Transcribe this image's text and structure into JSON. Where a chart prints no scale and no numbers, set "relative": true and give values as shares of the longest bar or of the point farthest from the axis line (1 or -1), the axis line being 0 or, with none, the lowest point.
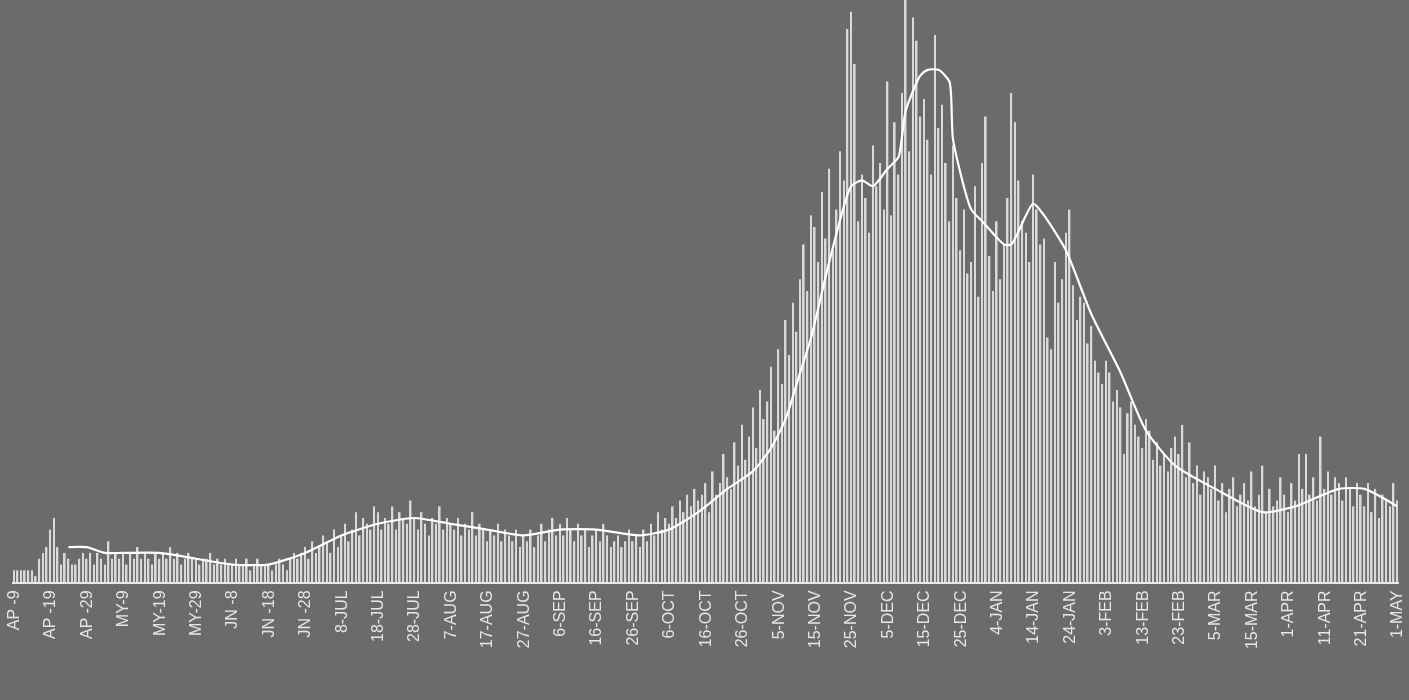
{
  "chart_data": {
    "type": "bar",
    "relative": true,
    "tick_labels": "x",
    "categories": [
      "AP -9",
      null,
      null,
      null,
      null,
      null,
      null,
      null,
      null,
      null,
      "AP -19",
      null,
      null,
      null,
      null,
      null,
      null,
      null,
      null,
      null,
      "AP -29",
      null,
      null,
      null,
      null,
      null,
      null,
      null,
      null,
      null,
      "MY-9",
      null,
      null,
      null,
      null,
      null,
      null,
      null,
      null,
      null,
      "MY-19",
      null,
      null,
      null,
      null,
      null,
      null,
      null,
      null,
      null,
      "MY-29",
      null,
      null,
      null,
      null,
      null,
      null,
      null,
      null,
      null,
      "JN -8",
      null,
      null,
      null,
      null,
      null,
      null,
      null,
      null,
      null,
      "JN -18",
      null,
      null,
      null,
      null,
      null,
      null,
      null,
      null,
      null,
      "JN -28",
      null,
      null,
      null,
      null,
      null,
      null,
      null,
      null,
      null,
      "8-JUL",
      null,
      null,
      null,
      null,
      null,
      null,
      null,
      null,
      null,
      "18-JUL",
      null,
      null,
      null,
      null,
      null,
      null,
      null,
      null,
      null,
      "28-JUL",
      null,
      null,
      null,
      null,
      null,
      null,
      null,
      null,
      null,
      "7-AUG",
      null,
      null,
      null,
      null,
      null,
      null,
      null,
      null,
      null,
      "17-AUG",
      null,
      null,
      null,
      null,
      null,
      null,
      null,
      null,
      null,
      "27-AUG",
      null,
      null,
      null,
      null,
      null,
      null,
      null,
      null,
      null,
      "6-SEP",
      null,
      null,
      null,
      null,
      null,
      null,
      null,
      null,
      null,
      "16-SEP",
      null,
      null,
      null,
      null,
      null,
      null,
      null,
      null,
      null,
      "26-SEP",
      null,
      null,
      null,
      null,
      null,
      null,
      null,
      null,
      null,
      "6-OCT",
      null,
      null,
      null,
      null,
      null,
      null,
      null,
      null,
      null,
      "16-OCT",
      null,
      null,
      null,
      null,
      null,
      null,
      null,
      null,
      null,
      "26-OCT",
      null,
      null,
      null,
      null,
      null,
      null,
      null,
      null,
      null,
      "5-NOV",
      null,
      null,
      null,
      null,
      null,
      null,
      null,
      null,
      null,
      "15-NOV",
      null,
      null,
      null,
      null,
      null,
      null,
      null,
      null,
      null,
      "25-NOV",
      null,
      null,
      null,
      null,
      null,
      null,
      null,
      null,
      null,
      "5-DEC",
      null,
      null,
      null,
      null,
      null,
      null,
      null,
      null,
      null,
      "15-DEC",
      null,
      null,
      null,
      null,
      null,
      null,
      null,
      null,
      null,
      "25-DEC",
      null,
      null,
      null,
      null,
      null,
      null,
      null,
      null,
      null,
      "4-JAN",
      null,
      null,
      null,
      null,
      null,
      null,
      null,
      null,
      null,
      "14-JAN",
      null,
      null,
      null,
      null,
      null,
      null,
      null,
      null,
      null,
      "24-JAN",
      null,
      null,
      null,
      null,
      null,
      null,
      null,
      null,
      null,
      "3-FEB",
      null,
      null,
      null,
      null,
      null,
      null,
      null,
      null,
      null,
      "13-FEB",
      null,
      null,
      null,
      null,
      null,
      null,
      null,
      null,
      null,
      "23-FEB",
      null,
      null,
      null,
      null,
      null,
      null,
      null,
      null,
      null,
      "5-MAR",
      null,
      null,
      null,
      null,
      null,
      null,
      null,
      null,
      null,
      "15-MAR",
      null,
      null,
      null,
      null,
      null,
      null,
      null,
      null,
      null,
      "1-APR",
      null,
      null,
      null,
      null,
      null,
      null,
      null,
      null,
      null,
      "11-APR",
      null,
      null,
      null,
      null,
      null,
      null,
      null,
      null,
      null,
      "21-APR",
      null,
      null,
      null,
      null,
      null,
      null,
      null,
      null,
      null,
      "1-MAY"
    ],
    "series": [
      {
        "color": "#d9d9d9",
        "values": [
          0.02,
          0.02,
          0.02,
          0.02,
          0.02,
          0.02,
          0.01,
          0.04,
          0.05,
          0.06,
          0.09,
          0.11,
          0.06,
          0.03,
          0.05,
          0.04,
          0.03,
          0.03,
          0.04,
          0.05,
          0.04,
          0.05,
          0.03,
          0.05,
          0.04,
          0.03,
          0.07,
          0.04,
          0.05,
          0.04,
          0.05,
          0.03,
          0.05,
          0.04,
          0.06,
          0.04,
          0.05,
          0.04,
          0.03,
          0.05,
          0.04,
          0.05,
          0.04,
          0.06,
          0.04,
          0.05,
          0.03,
          0.04,
          0.05,
          0.04,
          0.04,
          0.03,
          0.04,
          0.04,
          0.05,
          0.03,
          0.04,
          0.03,
          0.04,
          0.03,
          0.03,
          0.04,
          0.03,
          0.03,
          0.04,
          0.02,
          0.03,
          0.04,
          0.03,
          0.03,
          0.03,
          0.02,
          0.03,
          0.04,
          0.03,
          0.02,
          0.04,
          0.05,
          0.04,
          0.05,
          0.06,
          0.04,
          0.07,
          0.05,
          0.06,
          0.08,
          0.07,
          0.05,
          0.09,
          0.06,
          0.08,
          0.1,
          0.07,
          0.09,
          0.12,
          0.08,
          0.11,
          0.1,
          0.09,
          0.13,
          0.12,
          0.09,
          0.11,
          0.1,
          0.13,
          0.09,
          0.12,
          0.11,
          0.1,
          0.14,
          0.11,
          0.09,
          0.12,
          0.1,
          0.08,
          0.11,
          0.1,
          0.13,
          0.09,
          0.11,
          0.1,
          0.09,
          0.11,
          0.08,
          0.1,
          0.09,
          0.12,
          0.08,
          0.1,
          0.09,
          0.07,
          0.09,
          0.08,
          0.1,
          0.07,
          0.09,
          0.08,
          0.07,
          0.09,
          0.06,
          0.08,
          0.07,
          0.09,
          0.06,
          0.08,
          0.1,
          0.07,
          0.09,
          0.11,
          0.08,
          0.1,
          0.08,
          0.11,
          0.09,
          0.07,
          0.1,
          0.08,
          0.09,
          0.06,
          0.08,
          0.09,
          0.07,
          0.1,
          0.08,
          0.06,
          0.07,
          0.08,
          0.06,
          0.07,
          0.09,
          0.07,
          0.08,
          0.06,
          0.09,
          0.07,
          0.1,
          0.08,
          0.12,
          0.09,
          0.11,
          0.1,
          0.13,
          0.11,
          0.14,
          0.12,
          0.15,
          0.13,
          0.16,
          0.14,
          0.15,
          0.17,
          0.12,
          0.19,
          0.15,
          0.17,
          0.22,
          0.18,
          0.16,
          0.24,
          0.2,
          0.27,
          0.21,
          0.25,
          0.3,
          0.23,
          0.33,
          0.28,
          0.31,
          0.37,
          0.26,
          0.4,
          0.34,
          0.45,
          0.39,
          0.48,
          0.43,
          0.52,
          0.58,
          0.5,
          0.63,
          0.61,
          0.55,
          0.67,
          0.59,
          0.71,
          0.57,
          0.64,
          0.74,
          0.69,
          0.95,
          0.98,
          0.89,
          0.62,
          0.7,
          0.66,
          0.6,
          0.75,
          0.68,
          0.72,
          0.64,
          0.86,
          0.63,
          0.79,
          0.7,
          0.84,
          1.0,
          0.74,
          0.97,
          0.93,
          0.8,
          0.83,
          0.76,
          0.7,
          0.94,
          0.78,
          0.82,
          0.72,
          0.62,
          0.75,
          0.66,
          0.57,
          0.64,
          0.53,
          0.55,
          0.68,
          0.49,
          0.72,
          0.8,
          0.56,
          0.5,
          0.62,
          0.52,
          0.58,
          0.66,
          0.84,
          0.79,
          0.69,
          0.62,
          0.6,
          0.55,
          0.7,
          0.64,
          0.58,
          0.59,
          0.42,
          0.4,
          0.55,
          0.48,
          0.52,
          0.6,
          0.64,
          0.51,
          0.45,
          0.49,
          0.48,
          0.41,
          0.44,
          0.38,
          0.36,
          0.34,
          0.38,
          0.36,
          0.31,
          0.33,
          0.3,
          0.22,
          0.29,
          0.31,
          0.27,
          0.25,
          0.23,
          0.28,
          0.26,
          0.21,
          0.24,
          0.2,
          0.22,
          0.19,
          0.23,
          0.25,
          0.22,
          0.27,
          0.18,
          0.24,
          0.17,
          0.2,
          0.15,
          0.19,
          0.18,
          0.16,
          0.2,
          0.14,
          0.17,
          0.12,
          0.16,
          0.18,
          0.13,
          0.15,
          0.17,
          0.14,
          0.19,
          0.13,
          0.15,
          0.2,
          0.12,
          0.16,
          0.13,
          0.14,
          0.18,
          0.15,
          0.12,
          0.17,
          0.14,
          0.22,
          0.16,
          0.22,
          0.15,
          0.18,
          0.14,
          0.25,
          0.16,
          0.19,
          0.15,
          0.18,
          0.17,
          0.14,
          0.18,
          0.16,
          0.13,
          0.17,
          0.15,
          0.13,
          0.17,
          0.12,
          0.16,
          0.11,
          0.15,
          0.14,
          0.13,
          0.17,
          0.14
        ]
      },
      {
        "type": "line",
        "color": "#ffffff",
        "values": [
          null,
          null,
          null,
          null,
          null,
          null,
          null,
          null,
          null,
          null,
          null,
          null,
          null,
          null,
          null,
          0.06,
          null,
          null,
          null,
          null,
          0.06,
          null,
          null,
          null,
          null,
          0.05,
          null,
          null,
          null,
          null,
          0.05,
          null,
          null,
          null,
          null,
          null,
          null,
          null,
          null,
          null,
          0.05,
          null,
          null,
          null,
          null,
          null,
          null,
          null,
          null,
          null,
          0.04,
          null,
          null,
          null,
          null,
          null,
          null,
          null,
          null,
          null,
          0.03,
          null,
          null,
          null,
          null,
          null,
          null,
          null,
          null,
          null,
          0.03,
          null,
          null,
          null,
          null,
          null,
          null,
          null,
          null,
          null,
          0.05,
          null,
          null,
          null,
          null,
          null,
          null,
          null,
          null,
          null,
          0.08,
          null,
          null,
          null,
          null,
          null,
          null,
          null,
          null,
          null,
          0.1,
          null,
          null,
          null,
          null,
          null,
          null,
          null,
          null,
          null,
          0.11,
          null,
          null,
          null,
          null,
          null,
          null,
          null,
          null,
          null,
          0.1,
          null,
          null,
          null,
          null,
          null,
          null,
          null,
          null,
          null,
          0.09,
          null,
          null,
          null,
          null,
          null,
          null,
          null,
          null,
          null,
          0.08,
          null,
          null,
          null,
          null,
          null,
          null,
          null,
          null,
          null,
          0.09,
          null,
          null,
          null,
          null,
          null,
          null,
          null,
          null,
          null,
          0.09,
          null,
          null,
          null,
          null,
          null,
          null,
          null,
          null,
          null,
          null,
          null,
          0.08,
          null,
          null,
          null,
          null,
          null,
          null,
          null,
          0.09,
          null,
          null,
          null,
          null,
          null,
          null,
          null,
          0.12,
          null,
          null,
          null,
          null,
          null,
          null,
          null,
          0.16,
          null,
          null,
          null,
          null,
          null,
          null,
          0.19,
          null,
          null,
          null,
          null,
          0.23,
          null,
          null,
          null,
          0.28,
          null,
          null,
          null,
          0.36,
          null,
          null,
          0.42,
          null,
          null,
          null,
          null,
          0.55,
          null,
          null,
          null,
          null,
          null,
          0.68,
          null,
          null,
          0.69,
          null,
          null,
          0.68,
          null,
          null,
          null,
          0.71,
          null,
          null,
          0.73,
          null,
          0.81,
          null,
          null,
          null,
          0.87,
          null,
          0.88,
          null,
          null,
          0.88,
          null,
          null,
          0.86,
          0.76,
          null,
          null,
          null,
          null,
          0.64,
          null,
          null,
          0.62,
          null,
          null,
          null,
          null,
          null,
          0.58,
          null,
          0.58,
          null,
          null,
          null,
          null,
          null,
          0.65,
          null,
          null,
          0.63,
          null,
          null,
          null,
          null,
          null,
          0.57,
          null,
          null,
          null,
          null,
          null,
          null,
          0.46,
          null,
          null,
          null,
          null,
          null,
          null,
          null,
          0.36,
          null,
          null,
          null,
          null,
          null,
          null,
          0.26,
          null,
          null,
          null,
          null,
          null,
          null,
          null,
          0.2,
          null,
          null,
          null,
          null,
          null,
          null,
          null,
          null,
          null,
          null,
          0.16,
          null,
          null,
          null,
          null,
          null,
          null,
          null,
          null,
          null,
          null,
          null,
          null,
          0.12,
          null,
          null,
          null,
          null,
          null,
          null,
          null,
          null,
          0.13,
          null,
          null,
          null,
          null,
          null,
          null,
          null,
          null,
          null,
          null,
          null,
          0.16,
          null,
          null,
          null,
          null,
          null,
          null,
          0.16,
          null,
          null,
          null,
          null,
          null,
          null,
          null,
          null,
          0.13
        ]
      }
    ]
  }
}
